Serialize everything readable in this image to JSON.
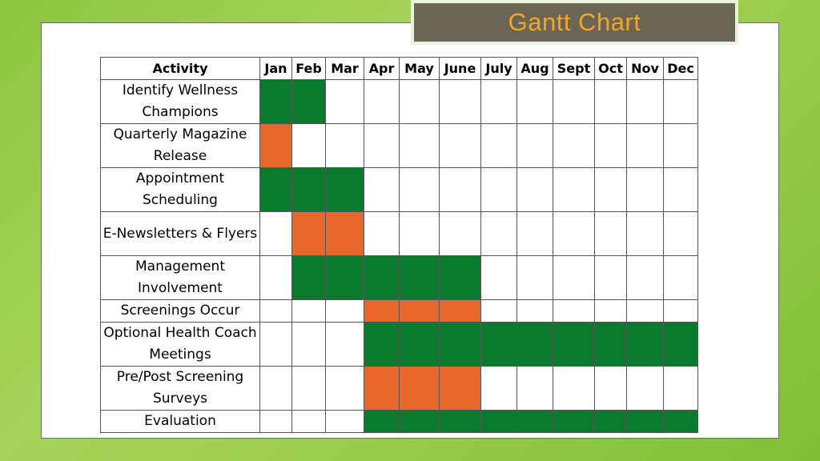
{
  "title": "Gantt Chart",
  "colors": {
    "green": "#087c2c",
    "orange": "#e8672a",
    "title_text": "#f5a623",
    "title_bg": "#6b6555"
  },
  "chart_data": {
    "type": "table",
    "header": [
      "Activity",
      "Jan",
      "Feb",
      "Mar",
      "Apr",
      "May",
      "June",
      "July",
      "Aug",
      "Sept",
      "Oct",
      "Nov",
      "Dec"
    ],
    "rows": [
      {
        "activity": "Identify Wellness Champions",
        "cells": [
          "green",
          "green",
          "",
          "",
          "",
          "",
          "",
          "",
          "",
          "",
          "",
          ""
        ]
      },
      {
        "activity": "Quarterly Magazine Release",
        "cells": [
          "orange",
          "",
          "",
          "",
          "",
          "",
          "",
          "",
          "",
          "",
          "",
          ""
        ]
      },
      {
        "activity": "Appointment Scheduling",
        "cells": [
          "green",
          "green",
          "green",
          "",
          "",
          "",
          "",
          "",
          "",
          "",
          "",
          ""
        ]
      },
      {
        "activity": "E-Newsletters & Flyers",
        "cells": [
          "",
          "orange",
          "orange",
          "",
          "",
          "",
          "",
          "",
          "",
          "",
          "",
          ""
        ]
      },
      {
        "activity": "Management Involvement",
        "cells": [
          "",
          "green",
          "green",
          "green",
          "green",
          "green",
          "",
          "",
          "",
          "",
          "",
          ""
        ]
      },
      {
        "activity": "Screenings Occur",
        "cells": [
          "",
          "",
          "",
          "orange",
          "orange",
          "orange",
          "",
          "",
          "",
          "",
          "",
          ""
        ]
      },
      {
        "activity": "Optional Health Coach Meetings",
        "cells": [
          "",
          "",
          "",
          "green",
          "green",
          "green",
          "green",
          "green",
          "green",
          "green",
          "green",
          "green"
        ]
      },
      {
        "activity": "Pre/Post Screening Surveys",
        "cells": [
          "",
          "",
          "",
          "orange",
          "orange",
          "orange",
          "",
          "",
          "",
          "",
          "",
          ""
        ]
      },
      {
        "activity": "Evaluation",
        "cells": [
          "",
          "",
          "",
          "green",
          "green",
          "green",
          "green",
          "green",
          "green",
          "green",
          "green",
          "green"
        ]
      }
    ]
  }
}
